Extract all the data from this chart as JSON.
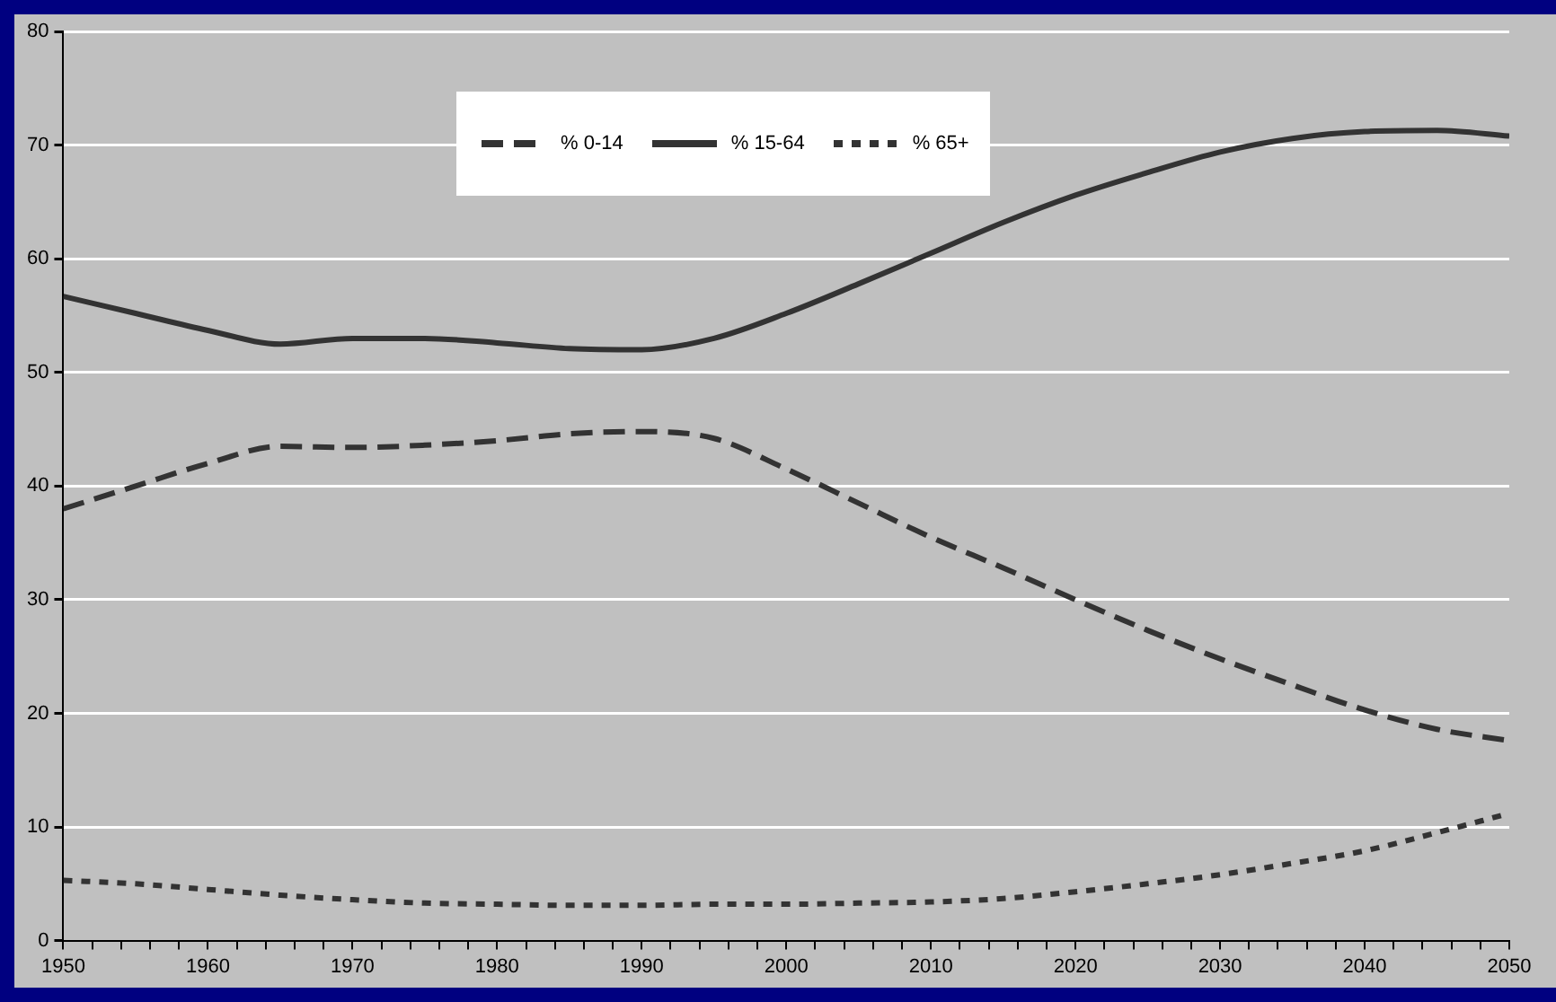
{
  "chart_data": {
    "type": "line",
    "x": [
      1950,
      1955,
      1960,
      1965,
      1970,
      1975,
      1980,
      1985,
      1990,
      1995,
      2000,
      2005,
      2010,
      2015,
      2020,
      2025,
      2030,
      2035,
      2040,
      2045,
      2050
    ],
    "series": [
      {
        "name": "% 0-14",
        "color": "#333333",
        "line_style": "dashed",
        "values": [
          38.0,
          40.0,
          42.0,
          43.5,
          43.4,
          43.6,
          44.0,
          44.6,
          44.8,
          44.2,
          41.5,
          38.5,
          35.5,
          32.8,
          30.0,
          27.3,
          24.8,
          22.5,
          20.3,
          18.6,
          17.6
        ]
      },
      {
        "name": "% 15-64",
        "color": "#333333",
        "line_style": "solid",
        "values": [
          56.7,
          55.2,
          53.7,
          52.5,
          53.0,
          53.0,
          52.6,
          52.1,
          52.0,
          53.0,
          55.2,
          57.8,
          60.5,
          63.2,
          65.6,
          67.6,
          69.4,
          70.6,
          71.2,
          71.3,
          70.8
        ]
      },
      {
        "name": "% 65+",
        "color": "#333333",
        "line_style": "dotted",
        "values": [
          5.3,
          5.0,
          4.5,
          4.0,
          3.6,
          3.3,
          3.2,
          3.1,
          3.1,
          3.2,
          3.2,
          3.3,
          3.4,
          3.7,
          4.3,
          5.0,
          5.8,
          6.8,
          7.9,
          9.5,
          11.2
        ]
      }
    ],
    "xlim": [
      1950,
      2050
    ],
    "xticks": [
      1950,
      {
        "value": 1952,
        "label": null
      },
      {
        "value": 1954,
        "label": null
      },
      {
        "value": 1956,
        "label": null
      },
      {
        "value": 1958,
        "label": null
      },
      1960,
      {
        "value": 1962,
        "label": null
      },
      {
        "value": 1964,
        "label": null
      },
      {
        "value": 1966,
        "label": null
      },
      {
        "value": 1968,
        "label": null
      },
      1970,
      {
        "value": 1972,
        "label": null
      },
      {
        "value": 1974,
        "label": null
      },
      {
        "value": 1976,
        "label": null
      },
      {
        "value": 1978,
        "label": null
      },
      1980,
      {
        "value": 1982,
        "label": null
      },
      {
        "value": 1984,
        "label": null
      },
      {
        "value": 1986,
        "label": null
      },
      {
        "value": 1988,
        "label": null
      },
      1990,
      {
        "value": 1992,
        "label": null
      },
      {
        "value": 1994,
        "label": null
      },
      {
        "value": 1996,
        "label": null
      },
      {
        "value": 1998,
        "label": null
      },
      2000,
      {
        "value": 2002,
        "label": null
      },
      {
        "value": 2004,
        "label": null
      },
      {
        "value": 2006,
        "label": null
      },
      {
        "value": 2008,
        "label": null
      },
      2010,
      {
        "value": 2012,
        "label": null
      },
      {
        "value": 2014,
        "label": null
      },
      {
        "value": 2016,
        "label": null
      },
      {
        "value": 2018,
        "label": null
      },
      2020,
      {
        "value": 2022,
        "label": null
      },
      {
        "value": 2024,
        "label": null
      },
      {
        "value": 2026,
        "label": null
      },
      {
        "value": 2028,
        "label": null
      },
      2030,
      {
        "value": 2032,
        "label": null
      },
      {
        "value": 2034,
        "label": null
      },
      {
        "value": 2036,
        "label": null
      },
      {
        "value": 2038,
        "label": null
      },
      2040,
      {
        "value": 2042,
        "label": null
      },
      {
        "value": 2044,
        "label": null
      },
      {
        "value": 2046,
        "label": null
      },
      {
        "value": 2048,
        "label": null
      },
      2050
    ],
    "ylim": [
      0,
      80
    ],
    "yticks": [
      0,
      10,
      20,
      30,
      40,
      50,
      60,
      70,
      80
    ],
    "grid": "y",
    "legend": "top",
    "marker": "none"
  }
}
